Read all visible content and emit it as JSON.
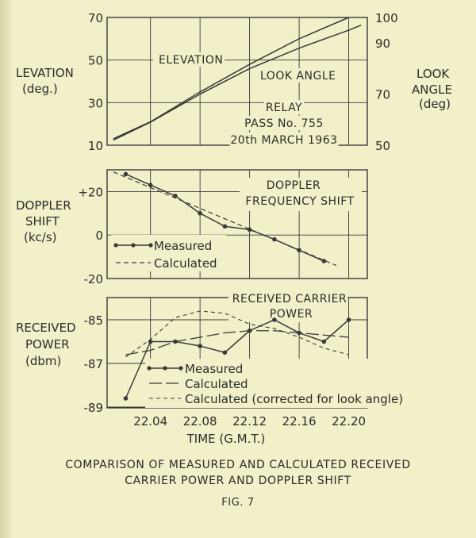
{
  "chart_data": [
    {
      "type": "line",
      "title": "",
      "annotations": [
        "RELAY",
        "PASS No. 755",
        "20th MARCH 1963"
      ],
      "ylabel_left": [
        "LEVATION",
        "(deg.)"
      ],
      "ylabel_right": [
        "LOOK",
        "ANGLE",
        "(deg)"
      ],
      "ylim_left": [
        10,
        70
      ],
      "yticks_left": [
        "70",
        "50",
        "30",
        "10"
      ],
      "ylim_right": [
        50,
        100
      ],
      "yticks_right": [
        "100",
        "90",
        "70",
        "50"
      ],
      "series": [
        {
          "name": "ELEVATION",
          "axis": "left",
          "x": [
            "22.01",
            "22.04",
            "22.08",
            "22.12",
            "22.16",
            "22.20"
          ],
          "values": [
            13,
            21,
            35,
            48,
            60,
            70
          ]
        },
        {
          "name": "LOOK ANGLE",
          "axis": "right",
          "x": [
            "22.01",
            "22.04",
            "22.08",
            "22.12",
            "22.16",
            "22.20",
            "22.21"
          ],
          "values": [
            52,
            59,
            70,
            80,
            88,
            95,
            97
          ]
        }
      ]
    },
    {
      "type": "line",
      "title": [
        "DOPPLER",
        "FREQUENCY SHIFT"
      ],
      "ylabel": [
        "DOPPLER",
        "SHIFT",
        "(kc/s)"
      ],
      "ylim": [
        -20,
        30
      ],
      "yticks": [
        "+20",
        "0",
        "-20"
      ],
      "legend": {
        "placement": "bottom-left",
        "entries": [
          "Measured",
          "Calculated"
        ]
      },
      "series": [
        {
          "name": "Measured",
          "x": [
            "22.02",
            "22.04",
            "22.06",
            "22.08",
            "22.10",
            "22.12",
            "22.14",
            "22.16",
            "22.18"
          ],
          "values": [
            28,
            23,
            18,
            10,
            4,
            2.5,
            -2,
            -7,
            -12
          ]
        },
        {
          "name": "Calculated",
          "x": [
            "22.01",
            "22.19"
          ],
          "values": [
            29,
            -14
          ]
        }
      ]
    },
    {
      "type": "line",
      "title": [
        "RECEIVED CARRIER",
        "POWER"
      ],
      "ylabel": [
        "RECEIVED",
        "POWER",
        "(dbm)"
      ],
      "ylim": [
        -89,
        -84
      ],
      "yticks": [
        "-85",
        "-87",
        "-89"
      ],
      "legend": {
        "placement": "bottom-center",
        "entries": [
          "Measured",
          "Calculated",
          "Calculated (corrected for look angle)"
        ]
      },
      "series": [
        {
          "name": "Measured",
          "x": [
            "22.02",
            "22.04",
            "22.06",
            "22.08",
            "22.10",
            "22.12",
            "22.14",
            "22.16",
            "22.18",
            "22.20"
          ],
          "values": [
            -88.6,
            -86.0,
            -86.0,
            -86.2,
            -86.5,
            -85.5,
            -85.0,
            -85.6,
            -86.0,
            -85.0
          ]
        },
        {
          "name": "Calculated",
          "x": [
            "22.02",
            "22.04",
            "22.06",
            "22.08",
            "22.10",
            "22.12",
            "22.14",
            "22.16",
            "22.18",
            "22.20"
          ],
          "values": [
            -86.6,
            -86.4,
            -86.0,
            -85.8,
            -85.6,
            -85.5,
            -85.5,
            -85.6,
            -85.7,
            -85.8
          ]
        },
        {
          "name": "Calculated (corrected for look angle)",
          "x": [
            "22.02",
            "22.04",
            "22.06",
            "22.08",
            "22.10",
            "22.12",
            "22.14",
            "22.16",
            "22.18",
            "22.20"
          ],
          "values": [
            -86.7,
            -85.9,
            -84.9,
            -84.6,
            -84.7,
            -85.2,
            -85.4,
            -85.8,
            -86.3,
            -86.6
          ]
        }
      ]
    }
  ],
  "x_axis": {
    "ticks": [
      "22.04",
      "22.08",
      "22.12",
      "22.16",
      "22.20"
    ],
    "label": "TIME (G.M.T.)"
  },
  "caption": {
    "line1": "COMPARISON OF MEASURED AND CALCULATED RECEIVED",
    "line2": "CARRIER POWER AND DOPPLER SHIFT",
    "fig": "FIG. 7"
  }
}
